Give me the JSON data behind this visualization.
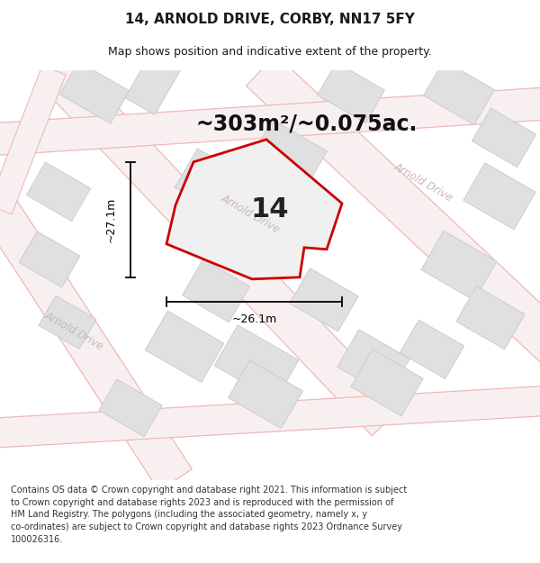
{
  "title": "14, ARNOLD DRIVE, CORBY, NN17 5FY",
  "subtitle": "Map shows position and indicative extent of the property.",
  "area_text": "~303m²/~0.075ac.",
  "width_label": "~26.1m",
  "height_label": "~27.1m",
  "property_number": "14",
  "footer_lines": [
    "Contains OS data © Crown copyright and database right 2021. This information is subject",
    "to Crown copyright and database rights 2023 and is reproduced with the permission of",
    "HM Land Registry. The polygons (including the associated geometry, namely x, y",
    "co-ordinates) are subject to Crown copyright and database rights 2023 Ordnance Survey",
    "100026316."
  ],
  "map_bg": "#f8f8f8",
  "road_line_color": "#f0b8b8",
  "road_fill_color": "#f5e8e8",
  "building_fill": "#e0e0e0",
  "building_edge": "#cccccc",
  "property_fill": "#e8e8e8",
  "property_edge": "#cc0000",
  "road_label_color": "#c8b8b8",
  "title_fontsize": 11,
  "subtitle_fontsize": 9,
  "area_fontsize": 17,
  "number_fontsize": 22,
  "footer_fontsize": 7
}
